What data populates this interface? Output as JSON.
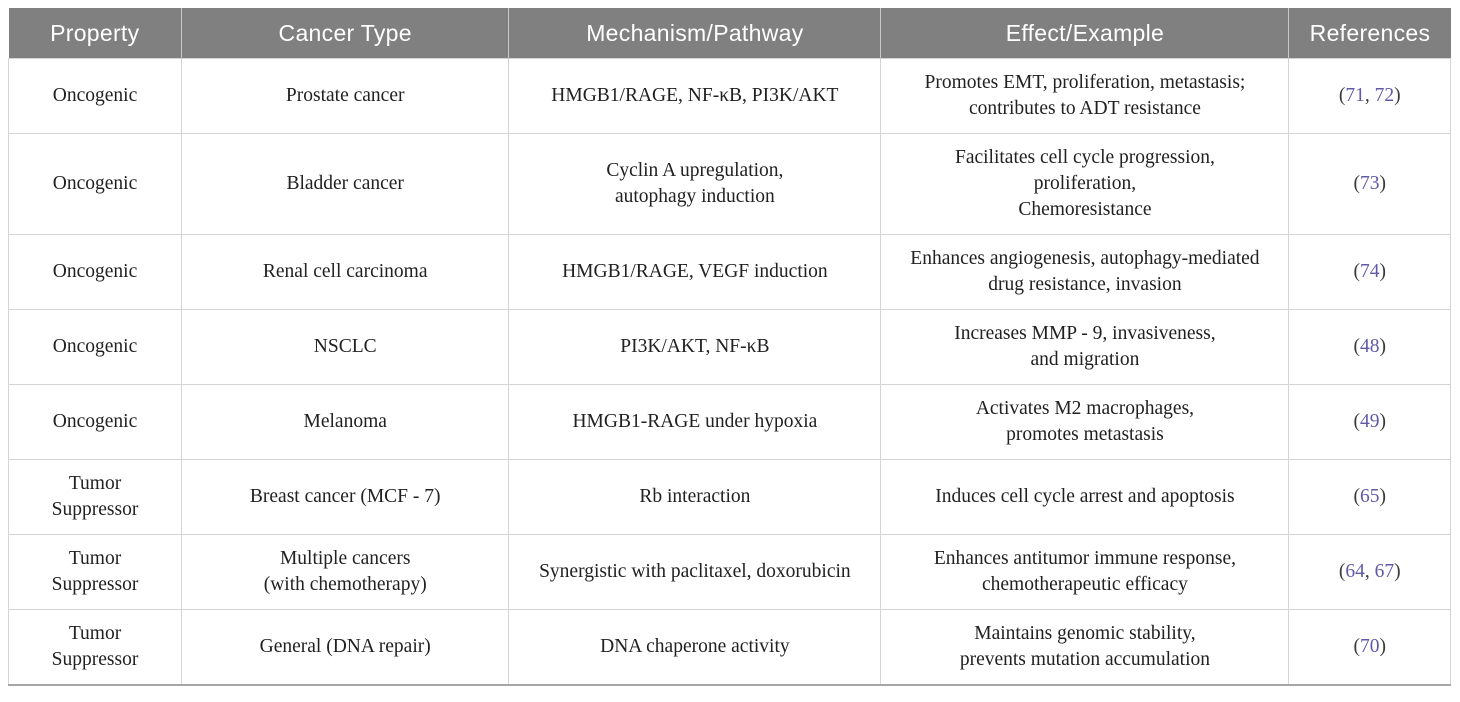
{
  "colors": {
    "header_bg": "#808080",
    "header_text": "#ffffff",
    "body_text": "#212121",
    "reference_link": "#5f5aa7",
    "border": "#d4d4d4"
  },
  "table": {
    "columns": [
      "Property",
      "Cancer Type",
      "Mechanism/Pathway",
      "Effect/Example",
      "References"
    ],
    "rows": [
      {
        "property": "Oncogenic",
        "cancer_type": "Prostate cancer",
        "mechanism": "HMGB1/RAGE, NF-κB, PI3K/AKT",
        "effect": "Promotes EMT, proliferation, metastasis;\ncontributes to ADT resistance",
        "references": [
          "71",
          "72"
        ]
      },
      {
        "property": "Oncogenic",
        "cancer_type": "Bladder cancer",
        "mechanism": "Cyclin A upregulation,\nautophagy induction",
        "effect": "Facilitates cell cycle progression,\nproliferation,\nChemoresistance",
        "references": [
          "73"
        ]
      },
      {
        "property": "Oncogenic",
        "cancer_type": "Renal cell carcinoma",
        "mechanism": "HMGB1/RAGE, VEGF induction",
        "effect": "Enhances angiogenesis, autophagy-mediated\ndrug resistance, invasion",
        "references": [
          "74"
        ]
      },
      {
        "property": "Oncogenic",
        "cancer_type": "NSCLC",
        "mechanism": "PI3K/AKT, NF-κB",
        "effect": "Increases MMP - 9, invasiveness,\nand migration",
        "references": [
          "48"
        ]
      },
      {
        "property": "Oncogenic",
        "cancer_type": "Melanoma",
        "mechanism": "HMGB1-RAGE under hypoxia",
        "effect": "Activates M2 macrophages,\npromotes metastasis",
        "references": [
          "49"
        ]
      },
      {
        "property": "Tumor\nSuppressor",
        "cancer_type": "Breast cancer (MCF - 7)",
        "mechanism": "Rb interaction",
        "effect": "Induces cell cycle arrest and apoptosis",
        "references": [
          "65"
        ]
      },
      {
        "property": "Tumor\nSuppressor",
        "cancer_type": "Multiple cancers\n(with chemotherapy)",
        "mechanism": "Synergistic with paclitaxel, doxorubicin",
        "effect": "Enhances antitumor immune response,\nchemotherapeutic efficacy",
        "references": [
          "64",
          "67"
        ]
      },
      {
        "property": "Tumor\nSuppressor",
        "cancer_type": "General (DNA repair)",
        "mechanism": "DNA chaperone activity",
        "effect": "Maintains genomic stability,\nprevents mutation accumulation",
        "references": [
          "70"
        ]
      }
    ]
  }
}
